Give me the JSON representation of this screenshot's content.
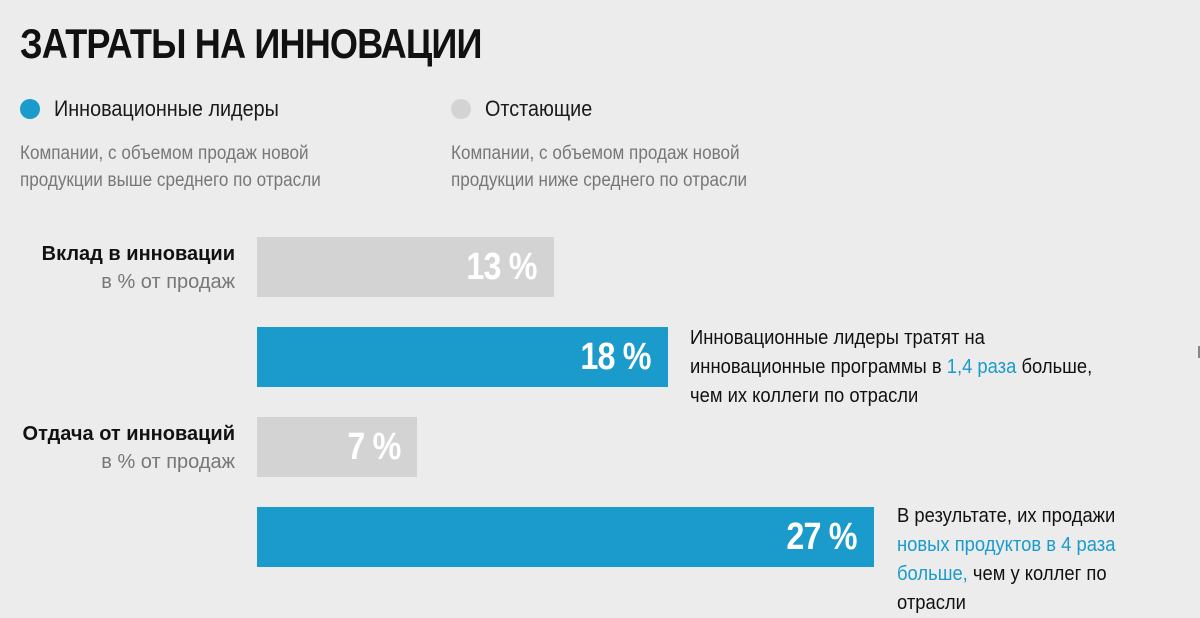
{
  "title": "ЗАТРАТЫ НА ИННОВАЦИИ",
  "colors": {
    "leaders": "#1a9bcb",
    "laggards": "#d3d3d3",
    "background": "#ececec"
  },
  "legend": [
    {
      "label": "Инновационные лидеры",
      "desc_line1": "Компании, с объемом продаж новой",
      "desc_line2": "продукции выше среднего по отрасли"
    },
    {
      "label": "Отстающие",
      "desc_line1": "Компании, с объемом продаж новой",
      "desc_line2": "продукции ниже среднего по отрасли"
    }
  ],
  "chart_data": {
    "type": "bar",
    "orientation": "horizontal",
    "categories": [
      "Вклад в инновации",
      "Отдача от инноваций"
    ],
    "category_subtitles": [
      "в % от продаж",
      "в % от продаж"
    ],
    "series": [
      {
        "name": "Отстающие",
        "values": [
          13,
          7
        ],
        "labels": [
          "13 %",
          "7 %"
        ]
      },
      {
        "name": "Инновационные лидеры",
        "values": [
          18,
          27
        ],
        "labels": [
          "18 %",
          "27 %"
        ]
      }
    ]
  },
  "annotations": {
    "first": {
      "line1": "Инновационные лидеры тратят на",
      "line2_pre": "инновационные программы в ",
      "line2_hl": "1,4 раза",
      "line2_post": " больше,",
      "line3": "чем их коллеги по отрасли"
    },
    "second": {
      "line1": "В результате, их продажи",
      "line2_hl": "новых продуктов в 4 раза",
      "line3_hl": "больше,",
      "line3_post": " чем у коллег по",
      "line4": "отрасли"
    }
  }
}
